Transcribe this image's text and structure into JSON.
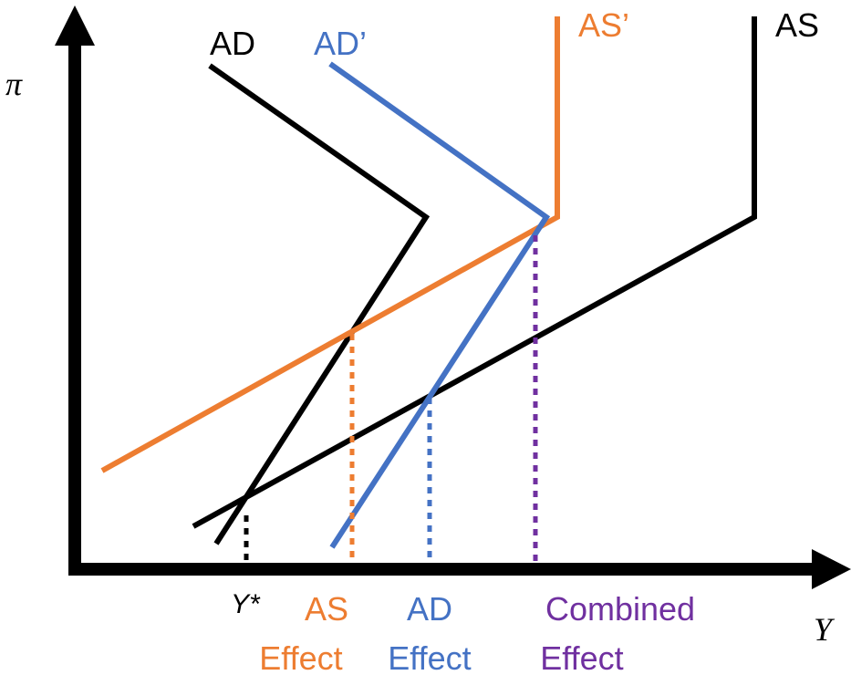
{
  "axes": {
    "y_label": "π",
    "x_label": "Y",
    "equilibrium_label": "Y*"
  },
  "curves": {
    "ad": "AD",
    "ad_shifted": "AD’",
    "as": "AS",
    "as_shifted": "AS’"
  },
  "effects": {
    "as_effect": {
      "line1": "AS",
      "line2": "Effect"
    },
    "ad_effect": {
      "line1": "AD",
      "line2": "Effect"
    },
    "combined_effect": {
      "line1": "Combined",
      "line2": "Effect"
    }
  },
  "colors": {
    "axis": "#000000",
    "ad": "#000000",
    "as": "#000000",
    "ad_shifted": "#4472C4",
    "as_shifted": "#ED7D31",
    "combined": "#7030A0"
  }
}
